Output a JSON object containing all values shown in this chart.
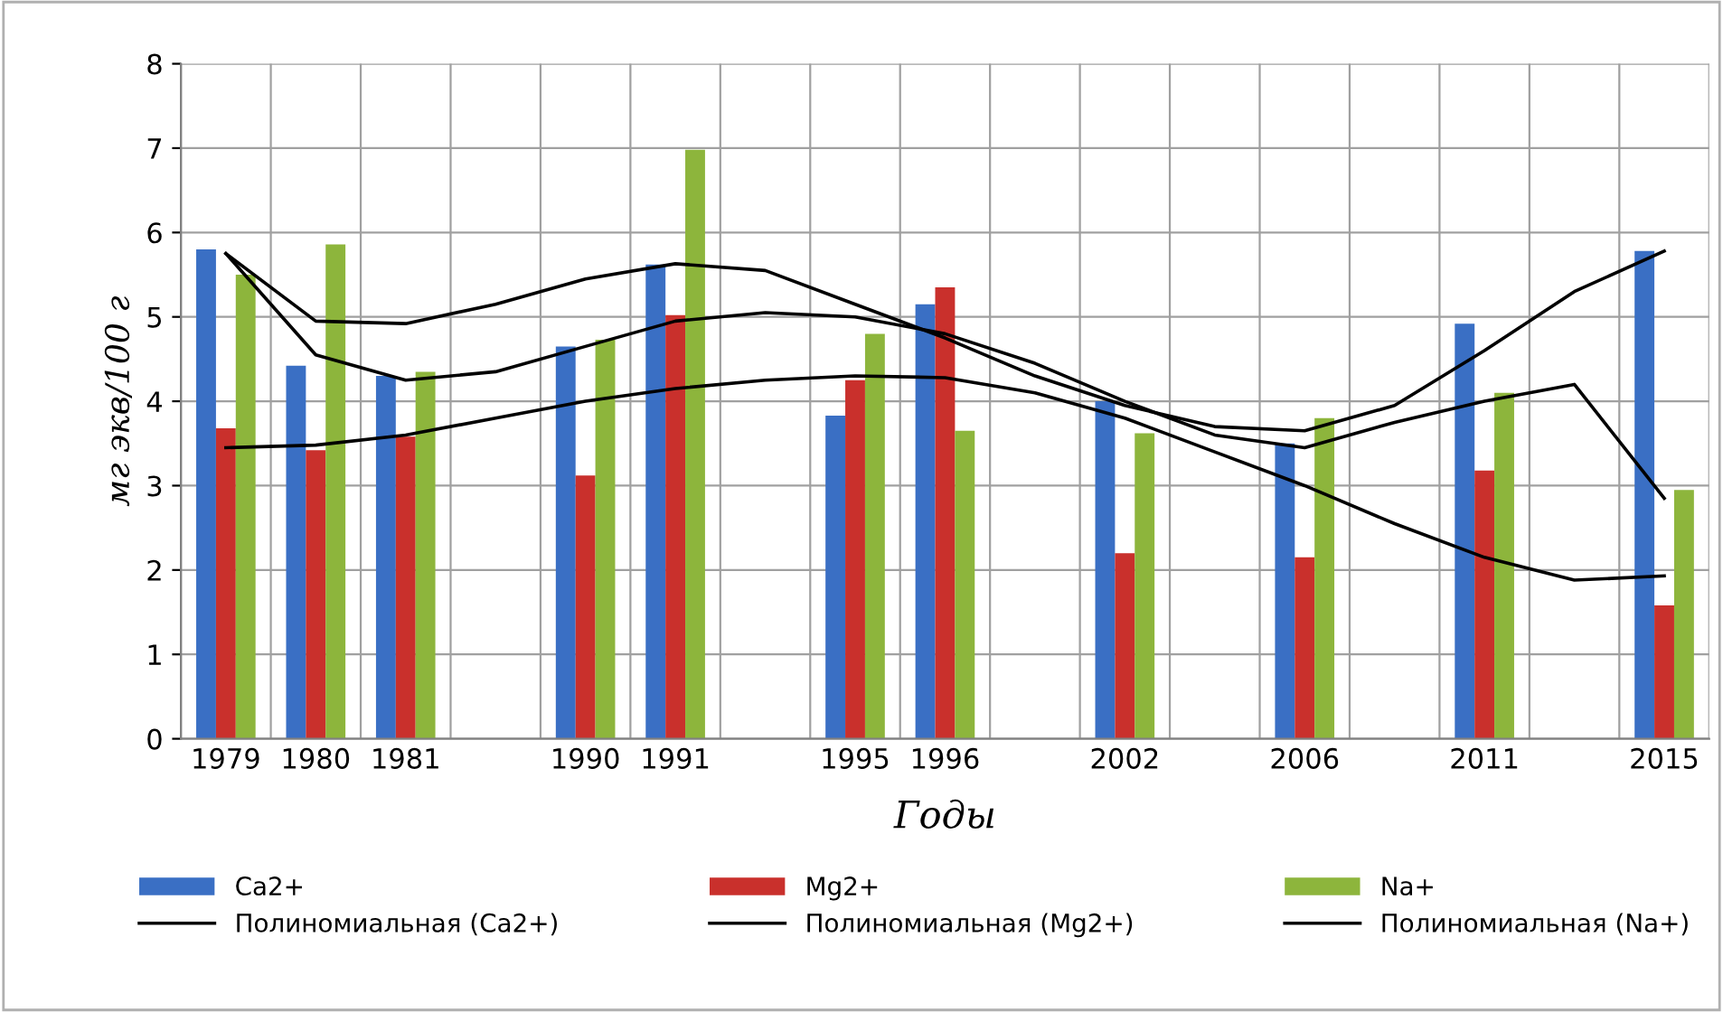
{
  "chart_data": {
    "type": "bar",
    "xlabel": "Годы",
    "ylabel": "мг экв/100 г",
    "categories": [
      "1979",
      "1980",
      "1981",
      null,
      "1990",
      "1991",
      null,
      "1995",
      "1996",
      null,
      "2002",
      null,
      "2006",
      null,
      "2011",
      null,
      "2015"
    ],
    "series": [
      {
        "name": "Ca2+",
        "color": "#3a6fc4",
        "values": [
          5.8,
          4.42,
          4.3,
          null,
          4.65,
          5.62,
          null,
          3.83,
          5.15,
          null,
          4.0,
          null,
          3.5,
          null,
          4.92,
          null,
          5.78
        ]
      },
      {
        "name": "Mg2+",
        "color": "#c9302c",
        "values": [
          3.68,
          3.42,
          3.58,
          null,
          3.12,
          5.02,
          null,
          4.25,
          5.35,
          null,
          2.2,
          null,
          2.15,
          null,
          3.18,
          null,
          1.58
        ]
      },
      {
        "name": "Na+",
        "color": "#8db53c",
        "values": [
          5.5,
          5.86,
          4.35,
          null,
          4.73,
          6.98,
          null,
          4.8,
          3.65,
          null,
          3.62,
          null,
          3.8,
          null,
          4.1,
          null,
          2.95
        ]
      },
      {
        "name": "Полиномиальная (Ca2+)",
        "type": "line",
        "color": "#000000",
        "values": [
          5.75,
          4.95,
          4.92,
          5.15,
          5.45,
          5.63,
          5.55,
          5.15,
          4.75,
          4.3,
          3.95,
          3.7,
          3.65,
          3.95,
          4.6,
          5.3,
          5.78
        ]
      },
      {
        "name": "Полиномиальная (Mg2+)",
        "type": "line",
        "color": "#000000",
        "values": [
          3.45,
          3.48,
          3.6,
          3.8,
          4.0,
          4.15,
          4.25,
          4.3,
          4.28,
          4.1,
          3.8,
          3.4,
          3.0,
          2.55,
          2.15,
          1.88,
          1.93
        ]
      },
      {
        "name": "Полиномиальная (Na+)",
        "type": "line",
        "color": "#000000",
        "values": [
          5.75,
          4.55,
          4.25,
          4.35,
          4.65,
          4.95,
          5.05,
          5.0,
          4.8,
          4.45,
          4.0,
          3.6,
          3.45,
          3.75,
          4.0,
          4.2,
          2.85
        ]
      }
    ],
    "ylim": [
      0,
      8
    ],
    "yticks": [
      0,
      1,
      2,
      3,
      4,
      5,
      6,
      7,
      8
    ],
    "grid": true,
    "legend": "bottom"
  }
}
